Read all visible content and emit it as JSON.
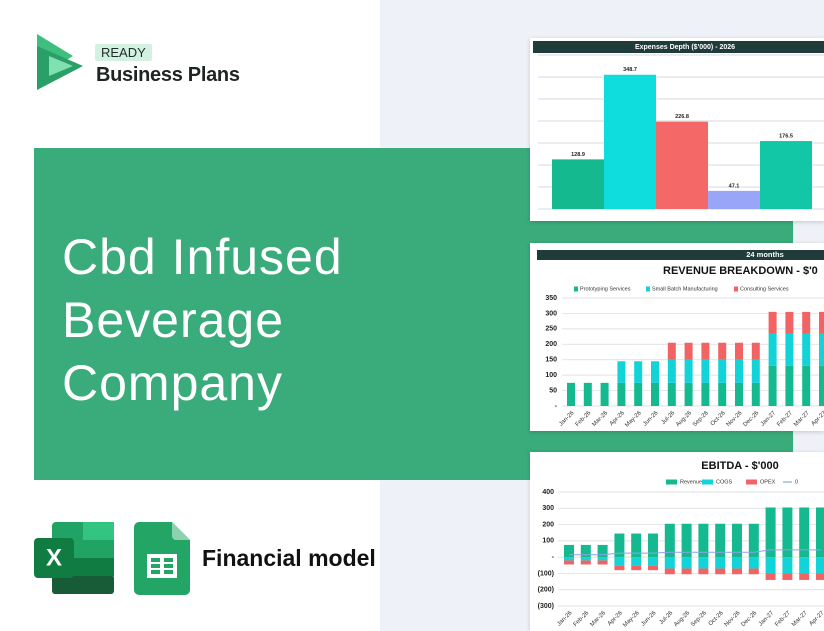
{
  "logo": {
    "badge": "READY",
    "name": "Business Plans"
  },
  "title": "Cbd Infused Beverage Company",
  "footer": "Financial model",
  "chart_data": [
    {
      "type": "bar",
      "title": "Expenses Depth ($'000) - 2026",
      "values": [
        128.9,
        348.7,
        226.8,
        47.1,
        176.5
      ],
      "colors": [
        "#14b98f",
        "#0fdcdc",
        "#f46868",
        "#99a5f7",
        "#12c7a5"
      ],
      "ylim": [
        0,
        400
      ],
      "grid": true
    },
    {
      "type": "stacked_bar",
      "header": "24 months",
      "title": "REVENUE BREAKDOWN - $'0",
      "categories": [
        "Jan-26",
        "Feb-26",
        "Mar-26",
        "Apr-26",
        "May-26",
        "Jun-26",
        "Jul-26",
        "Aug-26",
        "Sep-26",
        "Oct-26",
        "Nov-26",
        "Dec-26",
        "Jan-27",
        "Feb-27",
        "Mar-27",
        "Apr-27"
      ],
      "series": [
        {
          "name": "Prototyping Services",
          "color": "#14b98f",
          "values": [
            75,
            75,
            75,
            75,
            75,
            75,
            75,
            75,
            75,
            75,
            75,
            75,
            130,
            130,
            130,
            130
          ]
        },
        {
          "name": "Small Batch Manufacturing",
          "color": "#12d3d8",
          "values": [
            0,
            0,
            0,
            70,
            70,
            70,
            75,
            75,
            75,
            75,
            75,
            75,
            105,
            105,
            105,
            105
          ]
        },
        {
          "name": "Consulting Services",
          "color": "#f26464",
          "values": [
            0,
            0,
            0,
            0,
            0,
            0,
            55,
            55,
            55,
            55,
            55,
            55,
            70,
            70,
            70,
            70
          ]
        }
      ],
      "ylim": [
        0,
        350
      ],
      "yticks": [
        {
          "value": 0,
          "label": "-"
        },
        50,
        100,
        150,
        200,
        250,
        300,
        350
      ],
      "grid": true
    },
    {
      "type": "combo",
      "title": "EBITDA - $'000",
      "categories": [
        "Jan-26",
        "Feb-26",
        "Mar-26",
        "Apr-26",
        "May-26",
        "Jun-26",
        "Jul-26",
        "Aug-26",
        "Sep-26",
        "Oct-26",
        "Nov-26",
        "Dec-26",
        "Jan-27",
        "Feb-27",
        "Mar-27",
        "Apr-27"
      ],
      "series": [
        {
          "name": "Revenue",
          "color": "#14b98f",
          "kind": "bar",
          "values": [
            75,
            75,
            75,
            145,
            145,
            145,
            205,
            205,
            205,
            205,
            205,
            205,
            305,
            305,
            305,
            305
          ]
        },
        {
          "name": "COGS",
          "color": "#12d3d8",
          "kind": "bar",
          "values": [
            -20,
            -20,
            -20,
            -50,
            -50,
            -50,
            -70,
            -70,
            -70,
            -70,
            -70,
            -70,
            -100,
            -100,
            -100,
            -100
          ]
        },
        {
          "name": "OPEX",
          "color": "#f26464",
          "kind": "bar",
          "values": [
            -25,
            -25,
            -25,
            -30,
            -30,
            -30,
            -35,
            -35,
            -35,
            -35,
            -35,
            -35,
            -40,
            -40,
            -40,
            -40
          ]
        },
        {
          "name": "0",
          "color": "#8ea2e6",
          "kind": "line",
          "values": [
            15,
            15,
            15,
            25,
            25,
            25,
            30,
            30,
            30,
            30,
            30,
            30,
            45,
            45,
            45,
            45
          ]
        }
      ],
      "ylim": [
        -300,
        400
      ],
      "yticks": [
        {
          "value": -300,
          "label": "(300)"
        },
        {
          "value": -200,
          "label": "(200)"
        },
        {
          "value": -100,
          "label": "(100)"
        },
        {
          "value": 0,
          "label": "-"
        },
        100,
        200,
        300,
        400
      ],
      "grid": true
    }
  ]
}
